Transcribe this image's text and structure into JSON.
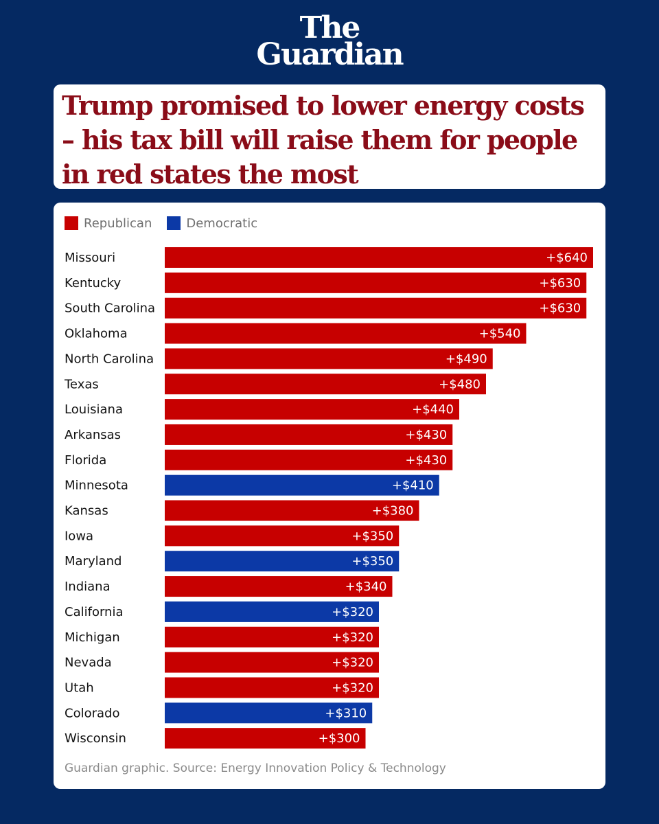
{
  "brand": {
    "line1": "The",
    "line2": "Guardian"
  },
  "headline": "Trump promised to lower energy costs – his tax bill will raise them for people in red states the most",
  "legend": [
    {
      "label": "Republican",
      "color": "#c70000"
    },
    {
      "label": "Democratic",
      "color": "#0c39a6"
    }
  ],
  "source": "Guardian graphic. Source: Energy Innovation Policy & Technology",
  "colors": {
    "background": "#052962",
    "republican": "#c70000",
    "democratic": "#0c39a6",
    "headline": "#8a0c18"
  },
  "chart_data": {
    "type": "bar",
    "orientation": "horizontal",
    "title": "Trump promised to lower energy costs – his tax bill will raise them for people in red states the most",
    "xlabel": "",
    "ylabel": "",
    "xlim": [
      0,
      640
    ],
    "grid": false,
    "legend_position": "top-left",
    "categories": [
      "Missouri",
      "Kentucky",
      "South Carolina",
      "Oklahoma",
      "North Carolina",
      "Texas",
      "Louisiana",
      "Arkansas",
      "Florida",
      "Minnesota",
      "Kansas",
      "Iowa",
      "Maryland",
      "Indiana",
      "California",
      "Michigan",
      "Nevada",
      "Utah",
      "Colorado",
      "Wisconsin"
    ],
    "values": [
      640,
      630,
      630,
      540,
      490,
      480,
      440,
      430,
      430,
      410,
      380,
      350,
      350,
      340,
      320,
      320,
      320,
      320,
      310,
      300
    ],
    "value_labels": [
      "+$640",
      "+$630",
      "+$630",
      "+$540",
      "+$490",
      "+$480",
      "+$440",
      "+$430",
      "+$430",
      "+$410",
      "+$380",
      "+$350",
      "+$350",
      "+$340",
      "+$320",
      "+$320",
      "+$320",
      "+$320",
      "+$310",
      "+$300"
    ],
    "party": [
      "Republican",
      "Republican",
      "Republican",
      "Republican",
      "Republican",
      "Republican",
      "Republican",
      "Republican",
      "Republican",
      "Democratic",
      "Republican",
      "Republican",
      "Democratic",
      "Republican",
      "Democratic",
      "Republican",
      "Republican",
      "Republican",
      "Democratic",
      "Republican"
    ]
  }
}
